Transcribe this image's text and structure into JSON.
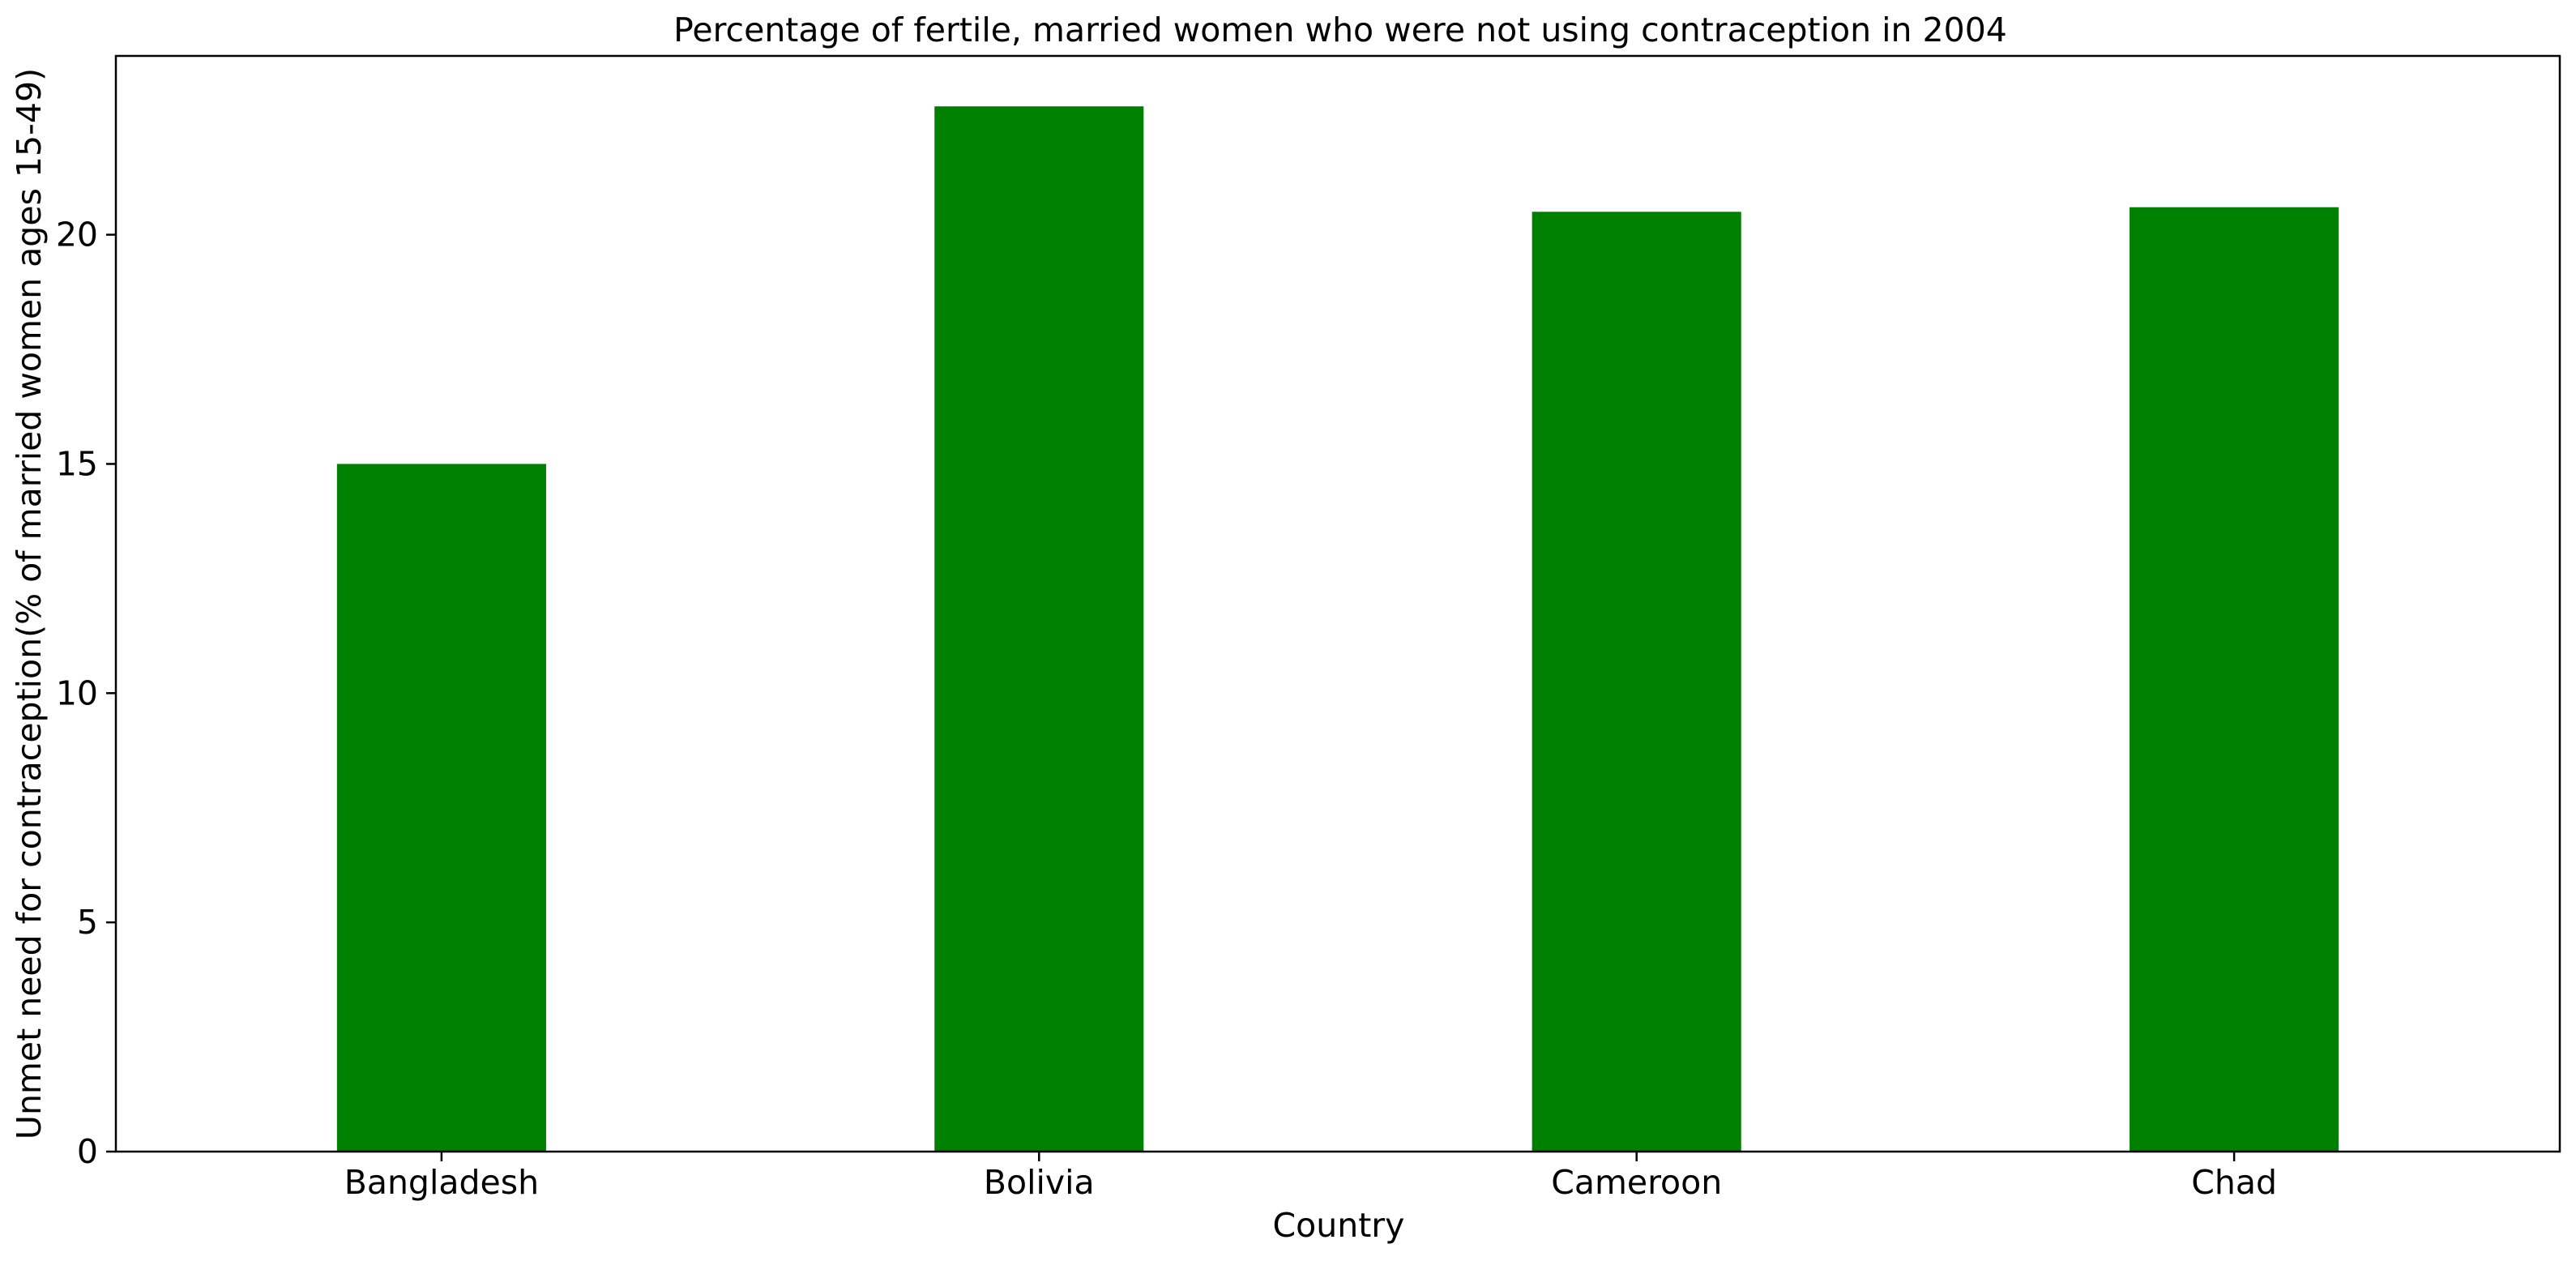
{
  "chart_data": {
    "type": "bar",
    "title": "Percentage of fertile, married women who were not using contraception in 2004",
    "xlabel": "Country",
    "ylabel": "Unmet need for contraception(% of married women ages 15-49)",
    "categories": [
      "Bangladesh",
      "Bolivia",
      "Cameroon",
      "Chad"
    ],
    "values": [
      15.0,
      22.8,
      20.5,
      20.6
    ],
    "ylim": [
      0,
      23.9
    ],
    "yticks": [
      0,
      5,
      10,
      15,
      20
    ],
    "bar_color": "#008000",
    "grid": false,
    "legend": "none"
  }
}
